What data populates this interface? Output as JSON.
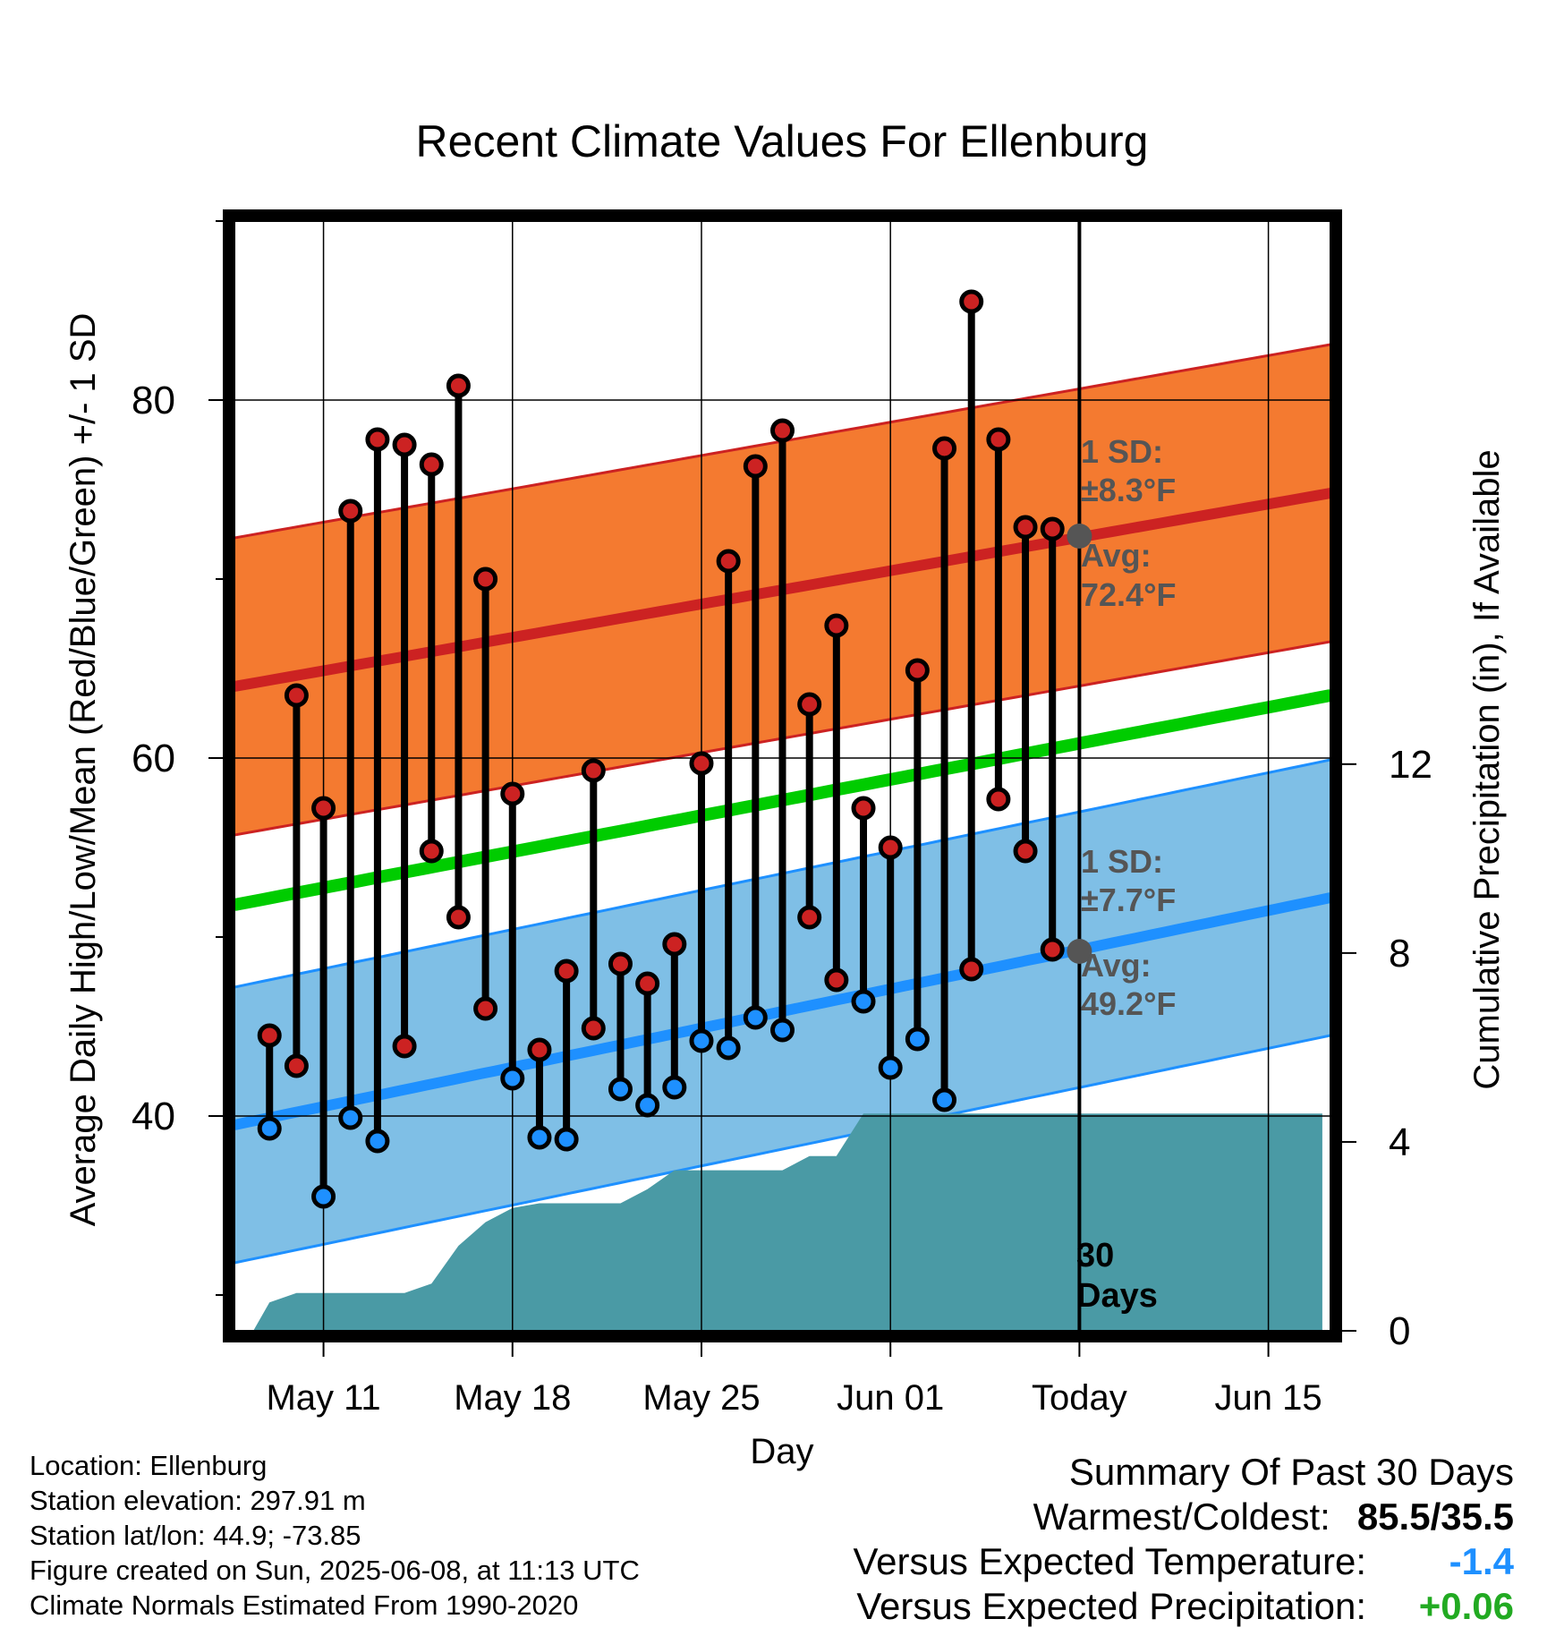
{
  "title": "Recent Climate Values For Ellenburg",
  "chart_data": {
    "type": "line",
    "title": "Recent Climate Values For Ellenburg",
    "xlabel": "Day",
    "ylabel_left": "Average Daily High/Low/Mean (Red/Blue/Green) +/- 1 SD",
    "ylabel_right": "Cumulative Precipitation (in), If Available",
    "ylim_left": [
      28,
      90
    ],
    "yticks_left": [
      40,
      60,
      80
    ],
    "ylim_right": [
      0,
      23.5
    ],
    "yticks_right": [
      0,
      4,
      8,
      12
    ],
    "xlim": [
      -3.3,
      37.3
    ],
    "x_ticks": [
      {
        "day": 0,
        "label": "May 11"
      },
      {
        "day": 7,
        "label": "May 18"
      },
      {
        "day": 14,
        "label": "May 25"
      },
      {
        "day": 21,
        "label": "Jun 01"
      },
      {
        "day": 28,
        "label": "Today"
      },
      {
        "day": 35,
        "label": "Jun 15"
      }
    ],
    "x_start_date": "2025-05-11",
    "grid": true,
    "today_day": 28,
    "days": [
      -2,
      -1,
      0,
      1,
      2,
      3,
      4,
      5,
      6,
      7,
      8,
      9,
      10,
      11,
      12,
      13,
      14,
      15,
      16,
      17,
      18,
      19,
      20,
      21,
      22,
      23,
      24,
      25,
      26,
      27
    ],
    "highs": [
      44.5,
      63.5,
      57.2,
      73.8,
      77.8,
      77.5,
      76.4,
      80.8,
      70.0,
      58.0,
      43.7,
      48.1,
      59.3,
      48.5,
      47.4,
      49.6,
      59.7,
      71.0,
      76.3,
      78.3,
      63.0,
      67.4,
      57.2,
      55.0,
      64.9,
      77.3,
      85.5,
      77.8,
      72.9,
      72.8
    ],
    "lows": [
      39.3,
      42.8,
      35.5,
      39.9,
      38.6,
      43.9,
      54.8,
      51.1,
      46.0,
      42.1,
      38.8,
      38.7,
      44.9,
      41.5,
      40.6,
      41.6,
      44.2,
      43.8,
      45.5,
      44.8,
      51.1,
      47.6,
      46.4,
      42.7,
      44.3,
      40.9,
      48.2,
      57.7,
      54.8,
      49.3
    ],
    "low_markers_blue_below_low_avg": true,
    "normal_high": {
      "start": 64.0,
      "end": 74.8,
      "sd": 8.3
    },
    "normal_low": {
      "start": 39.5,
      "end": 52.2,
      "sd": 7.7
    },
    "normal_mean": {
      "start": 51.8,
      "end": 63.5
    },
    "today_normal_high": 72.4,
    "today_normal_low": 49.2,
    "precip_cumulative": {
      "days": [
        -2.6,
        -2,
        -1,
        0,
        1,
        2,
        3,
        4,
        5,
        6,
        7,
        8,
        9,
        10,
        11,
        12,
        13,
        14,
        15,
        16,
        17,
        18,
        19,
        20,
        21,
        22,
        37
      ],
      "values": [
        0,
        0.6,
        0.8,
        0.8,
        0.8,
        0.8,
        0.8,
        1.0,
        1.8,
        2.3,
        2.6,
        2.7,
        2.7,
        2.7,
        2.7,
        3.0,
        3.4,
        3.4,
        3.4,
        3.4,
        3.4,
        3.7,
        3.7,
        4.6,
        4.6,
        4.6,
        4.6
      ]
    },
    "colors": {
      "high_band": "#f47a30",
      "high_line": "#cc2222",
      "low_band": "#7fbfe6",
      "low_line": "#1e90ff",
      "mean_line": "#00cc00",
      "precip": "#4a9aa5",
      "marker_high": "#cc2222",
      "marker_low_warm": "#cc2222",
      "marker_low_cold": "#1e90ff",
      "today_marker": "#555555"
    }
  },
  "annotations": {
    "high_sd_label": "1 SD:",
    "high_sd_value": "±8.3°F",
    "high_avg_label": "Avg:",
    "high_avg_value": "72.4°F",
    "low_sd_label": "1 SD:",
    "low_sd_value": "±7.7°F",
    "low_avg_label": "Avg:",
    "low_avg_value": "49.2°F",
    "days_line1": "30",
    "days_line2": "Days"
  },
  "footer": {
    "location": "Location: Ellenburg",
    "elevation": "Station elevation: 297.91 m",
    "latlon": "Station lat/lon: 44.9; -73.85",
    "created": "Figure created on Sun, 2025-06-08, at 11:13 UTC",
    "normals": "Climate Normals Estimated From 1990-2020"
  },
  "summary": {
    "title": "Summary Of Past 30 Days",
    "warmest_label": "Warmest/Coldest:",
    "warmest_value": "85.5/35.5",
    "temp_label": "Versus Expected Temperature:",
    "temp_value": "-1.4",
    "temp_color": "#1e90ff",
    "precip_label": "Versus Expected Precipitation:",
    "precip_value": "+0.06",
    "precip_color": "#22aa22"
  }
}
